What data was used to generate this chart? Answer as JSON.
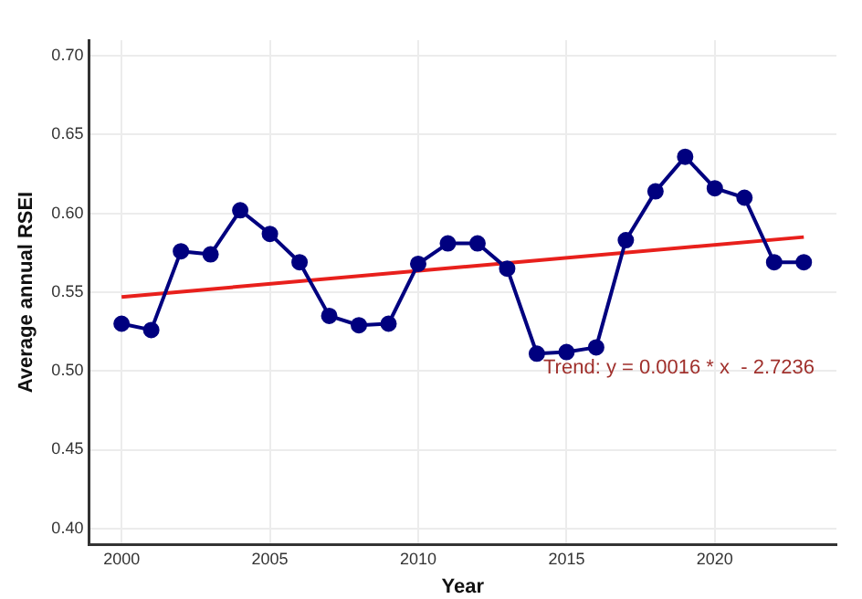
{
  "chart_data": {
    "type": "line",
    "xlabel": "Year",
    "ylabel": "Average annual RSEI",
    "x": [
      2000,
      2001,
      2002,
      2003,
      2004,
      2005,
      2006,
      2007,
      2008,
      2009,
      2010,
      2011,
      2012,
      2013,
      2014,
      2015,
      2016,
      2017,
      2018,
      2019,
      2020,
      2021,
      2022,
      2023
    ],
    "series": [
      {
        "type": "line",
        "color": "#00007f",
        "marker": "circle",
        "values": [
          0.53,
          0.526,
          0.576,
          0.574,
          0.602,
          0.587,
          0.569,
          0.535,
          0.529,
          0.53,
          0.568,
          0.581,
          0.581,
          0.565,
          0.511,
          0.512,
          0.515,
          0.583,
          0.614,
          0.636,
          0.616,
          0.61,
          0.569,
          0.569
        ]
      },
      {
        "type": "line",
        "color": "#e8201c",
        "marker": "none",
        "x": [
          2000,
          2023
        ],
        "values": [
          0.547,
          0.585
        ]
      }
    ],
    "xlim": [
      1998.9,
      2024.1
    ],
    "xticks": [
      2000,
      2005,
      2010,
      2015,
      2020
    ],
    "ylim": [
      0.39,
      0.71
    ],
    "yticks": [
      {
        "value": 0.4,
        "label": "0.40"
      },
      {
        "value": 0.45,
        "label": "0.45"
      },
      {
        "value": 0.5,
        "label": "0.50"
      },
      {
        "value": 0.55,
        "label": "0.55"
      },
      {
        "value": 0.6,
        "label": "0.60"
      },
      {
        "value": 0.65,
        "label": "0.65"
      },
      {
        "value": 0.7,
        "label": "0.70"
      }
    ],
    "grid": true,
    "legend": false,
    "annotations": [
      "Trend: y = 0.0016 * x  - 2.7236"
    ]
  }
}
